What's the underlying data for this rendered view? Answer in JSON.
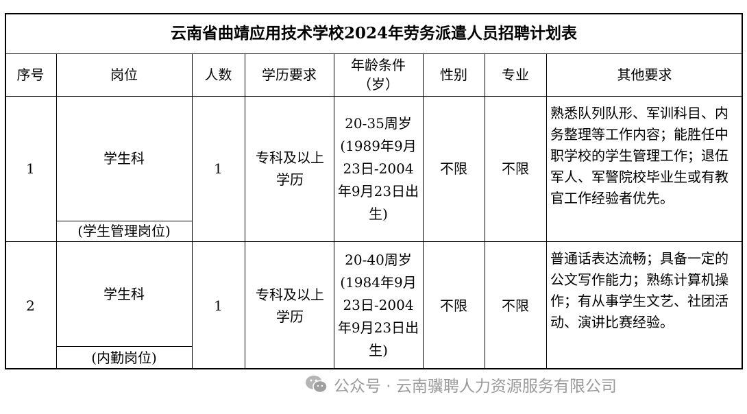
{
  "title": "云南省曲靖应用技术学校2024年劳务派遣人员招聘计划表",
  "headers": [
    "序号",
    "岗位",
    "人数",
    "学历要求",
    "年龄条件（岁）",
    "性别",
    "专业",
    "其他要求"
  ],
  "rows": [
    {
      "no": "1",
      "post": "学生科",
      "post_sub": "(学生管理岗位)",
      "count": "1",
      "edu": "专科及以上学历",
      "age": "20-35周岁(1989年9月23日-2004年9月23日出生)",
      "gender": "不限",
      "major": "不限",
      "other": "熟悉队列队形、军训科目、内务整理等工作内容；能胜任中职学校的学生管理工作；退伍军人、军警院校毕业生或有教官工作经验者优先。"
    },
    {
      "no": "2",
      "post": "学生科",
      "post_sub": "(内勤岗位)",
      "count": "1",
      "edu": "专科及以上学历",
      "age": "20-40周岁(1984年9月23日-2004年9月23日出生)",
      "gender": "不限",
      "major": "不限",
      "other": "普通话表达流畅；具备一定的公文写作能力；熟练计算机操作；有从事学生文艺、社团活动、演讲比赛经验。"
    }
  ],
  "watermark": "公众号 · 云南骥聘人力资源服务有限公司",
  "watermark_icon": "wechat-icon"
}
